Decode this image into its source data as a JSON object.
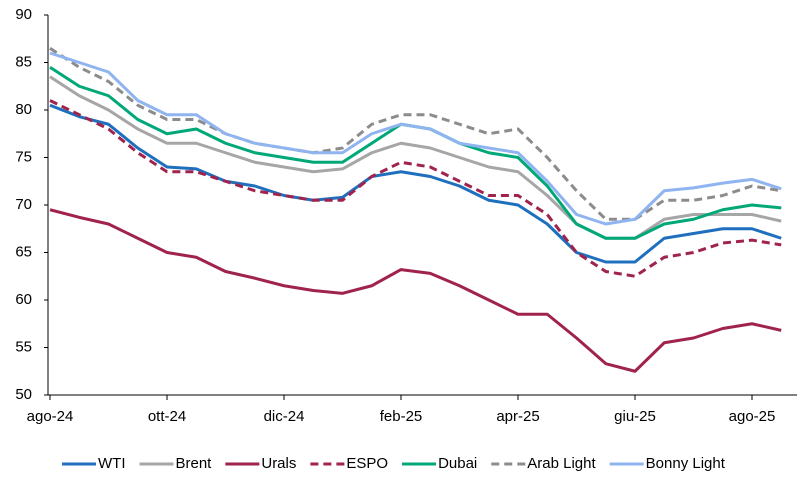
{
  "chart_data": {
    "type": "line",
    "categories": [
      "ago-24",
      null,
      null,
      null,
      "ott-24",
      null,
      null,
      null,
      "dic-24",
      null,
      null,
      null,
      "feb-25",
      null,
      null,
      null,
      "apr-25",
      null,
      null,
      null,
      "giu-25",
      null,
      null,
      null,
      "ago-25",
      null
    ],
    "ylim": [
      50,
      90
    ],
    "yticks": [
      50,
      55,
      60,
      65,
      70,
      75,
      80,
      85,
      90
    ],
    "grid": false,
    "legend": "bottom",
    "series": [
      {
        "name": "WTI",
        "color": "#1f6fbf",
        "dashed": false,
        "values": [
          80.5,
          79.3,
          78.5,
          76,
          74,
          73.8,
          72.5,
          72,
          71,
          70.5,
          70.8,
          73,
          73.5,
          73,
          72,
          70.5,
          70,
          68,
          65,
          64,
          64,
          66.5,
          67,
          67.5,
          67.5,
          66.5
        ]
      },
      {
        "name": "Brent",
        "color": "#a6a6a6",
        "dashed": false,
        "values": [
          83.5,
          81.5,
          80,
          78,
          76.5,
          76.5,
          75.5,
          74.5,
          74,
          73.5,
          73.8,
          75.5,
          76.5,
          76,
          75,
          74,
          73.5,
          71,
          68,
          66.5,
          66.5,
          68.5,
          69,
          69,
          69,
          68.3
        ]
      },
      {
        "name": "Urals",
        "color": "#a0234d",
        "dashed": false,
        "values": [
          69.5,
          68.7,
          68,
          66.5,
          65,
          64.5,
          63,
          62.3,
          61.5,
          61,
          60.7,
          61.5,
          63.2,
          62.8,
          61.5,
          60,
          58.5,
          58.5,
          56,
          53.3,
          52.5,
          55.5,
          56,
          57,
          57.5,
          56.8
        ]
      },
      {
        "name": "ESPO",
        "color": "#a0234d",
        "dashed": true,
        "values": [
          81,
          79.5,
          78,
          75.5,
          73.5,
          73.5,
          72.5,
          71.5,
          71,
          70.5,
          70.5,
          73,
          74.5,
          74,
          72.5,
          71,
          71,
          69,
          65,
          63,
          62.5,
          64.5,
          65,
          66,
          66.3,
          65.8
        ]
      },
      {
        "name": "Dubai",
        "color": "#00a878",
        "dashed": false,
        "values": [
          84.5,
          82.5,
          81.5,
          79,
          77.5,
          78,
          76.5,
          75.5,
          75,
          74.5,
          74.5,
          76.5,
          78.5,
          78,
          76.5,
          75.5,
          75,
          72,
          68,
          66.5,
          66.5,
          68,
          68.5,
          69.5,
          70,
          69.7
        ]
      },
      {
        "name": "Arab Light",
        "color": "#8c8c8c",
        "dashed": true,
        "values": [
          86.5,
          84.5,
          83,
          80.5,
          79,
          79,
          77.5,
          76.5,
          76,
          75.5,
          76,
          78.5,
          79.5,
          79.5,
          78.5,
          77.5,
          78,
          75,
          71.5,
          68.5,
          68.5,
          70.5,
          70.5,
          71,
          72,
          71.5
        ]
      },
      {
        "name": "Bonny Light",
        "color": "#8fb4f0",
        "dashed": false,
        "values": [
          86,
          85,
          84,
          81,
          79.5,
          79.5,
          77.5,
          76.5,
          76,
          75.5,
          75.5,
          77.5,
          78.5,
          78,
          76.5,
          76,
          75.5,
          72.5,
          69,
          68,
          68.5,
          71.5,
          71.8,
          72.3,
          72.7,
          71.7
        ]
      }
    ]
  }
}
